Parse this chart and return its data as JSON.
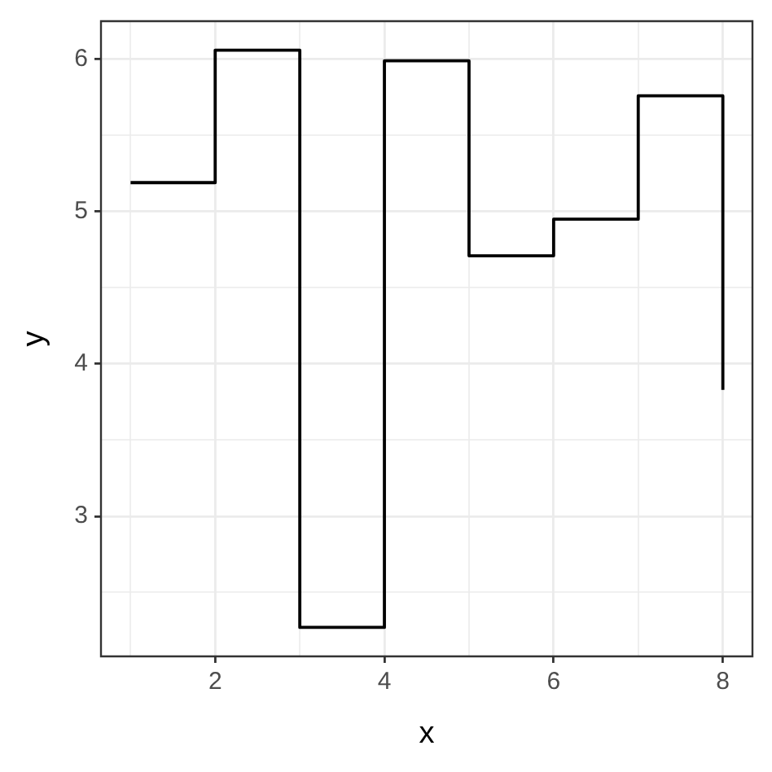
{
  "chart_data": {
    "type": "step",
    "xlabel": "x",
    "ylabel": "y",
    "x": [
      1,
      2,
      3,
      4,
      5,
      6,
      7,
      8
    ],
    "values": [
      5.19,
      6.06,
      2.27,
      5.99,
      4.71,
      4.95,
      5.76,
      3.83
    ],
    "color": "#000000",
    "xlim": [
      0.65,
      8.35
    ],
    "xticks": [
      {
        "value": 1,
        "label": null
      },
      2,
      {
        "value": 3,
        "label": null
      },
      4,
      {
        "value": 5,
        "label": null
      },
      6,
      {
        "value": 7,
        "label": null
      },
      8
    ],
    "ylim": [
      2.08,
      6.25
    ],
    "yticks": [
      {
        "value": 2.5,
        "label": null
      },
      3,
      {
        "value": 3.5,
        "label": null
      },
      4,
      {
        "value": 4.5,
        "label": null
      },
      5,
      {
        "value": 5.5,
        "label": null
      },
      6
    ],
    "grid": true
  }
}
